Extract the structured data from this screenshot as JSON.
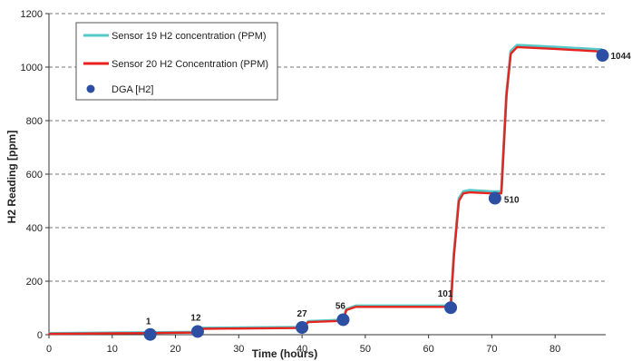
{
  "chart_data": {
    "type": "line",
    "xlabel": "Time (hours)",
    "ylabel": "H2 Reading [ppm]",
    "xlim": [
      0,
      88
    ],
    "ylim": [
      0,
      1200
    ],
    "xticks": [
      0,
      10,
      20,
      30,
      40,
      50,
      60,
      70,
      80
    ],
    "yticks": [
      0,
      200,
      400,
      600,
      800,
      1000,
      1200
    ],
    "grid": "horizontal dashed",
    "legend_position": "top-left",
    "colors": {
      "sensor19": "#55c8c8",
      "sensor20": "#e8231e",
      "dga": "#2d4fa3"
    },
    "series": [
      {
        "name": "Sensor 19 H2 concentration (PPM)",
        "color": "#55c8c8",
        "x": [
          0,
          16,
          23.5,
          24,
          40,
          41,
          46.5,
          47,
          48.5,
          63.5,
          64,
          64.8,
          65.5,
          66.5,
          70,
          71.5,
          72.3,
          73,
          74,
          80,
          87.5
        ],
        "y": [
          5,
          8,
          10,
          25,
          28,
          50,
          55,
          95,
          108,
          108,
          300,
          510,
          535,
          540,
          535,
          535,
          900,
          1060,
          1082,
          1075,
          1065
        ]
      },
      {
        "name": "Sensor 20 H2 Concentration (PPM)",
        "color": "#e8231e",
        "x": [
          0,
          16,
          23.5,
          24,
          40,
          41,
          46.5,
          47,
          48.5,
          63.5,
          64,
          64.8,
          65.5,
          66.5,
          70,
          71.5,
          72.3,
          73,
          74,
          80,
          87.5
        ],
        "y": [
          3,
          6,
          8,
          22,
          25,
          47,
          52,
          92,
          104,
          104,
          290,
          500,
          528,
          532,
          528,
          528,
          890,
          1050,
          1075,
          1068,
          1058
        ]
      }
    ],
    "points": {
      "name": "DGA [H2]",
      "color": "#2d4fa3",
      "x": [
        16,
        23.5,
        40,
        46.5,
        63.5,
        70.5,
        87.5
      ],
      "y": [
        1,
        12,
        27,
        56,
        101,
        510,
        1044
      ],
      "labels": [
        "1",
        "12",
        "27",
        "56",
        "101",
        "510",
        "1044"
      ]
    }
  }
}
